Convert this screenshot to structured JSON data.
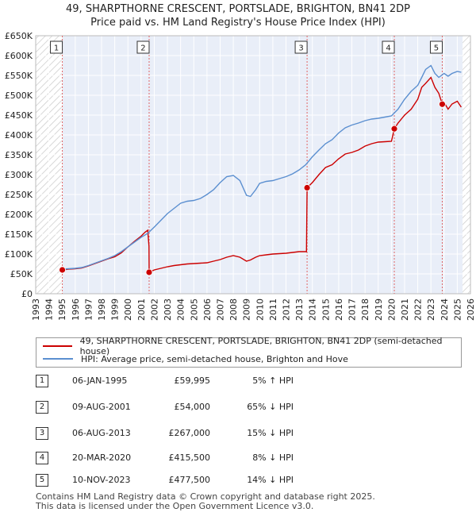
{
  "title": {
    "line1": "49, SHARPTHORNE CRESCENT, PORTSLADE, BRIGHTON, BN41 2DP",
    "line2": "Price paid vs. HM Land Registry's House Price Index (HPI)"
  },
  "colors": {
    "property": "#cc0000",
    "hpi": "#5b8fd0",
    "marker_line": "#e06666",
    "hatch": "#cccccc",
    "band": "#e9eef8"
  },
  "chart_data": {
    "type": "line",
    "title": "49, SHARPTHORNE CRESCENT, PORTSLADE, BRIGHTON, BN41 2DP — Price paid vs. HM Land Registry's House Price Index (HPI)",
    "xlim": [
      1993,
      2026
    ],
    "ylim": [
      0,
      650000
    ],
    "x_ticks": [
      "1993",
      "1994",
      "1995",
      "1996",
      "1997",
      "1998",
      "1999",
      "2000",
      "2001",
      "2002",
      "2003",
      "2004",
      "2005",
      "2006",
      "2007",
      "2008",
      "2009",
      "2010",
      "2011",
      "2012",
      "2013",
      "2014",
      "2015",
      "2016",
      "2017",
      "2018",
      "2019",
      "2020",
      "2021",
      "2022",
      "2023",
      "2024",
      "2025",
      "2026"
    ],
    "y_ticks": [
      {
        "value": 0,
        "label": "£0"
      },
      {
        "value": 50000,
        "label": "£50K"
      },
      {
        "value": 100000,
        "label": "£100K"
      },
      {
        "value": 150000,
        "label": "£150K"
      },
      {
        "value": 200000,
        "label": "£200K"
      },
      {
        "value": 250000,
        "label": "£250K"
      },
      {
        "value": 300000,
        "label": "£300K"
      },
      {
        "value": 350000,
        "label": "£350K"
      },
      {
        "value": 400000,
        "label": "£400K"
      },
      {
        "value": 450000,
        "label": "£450K"
      },
      {
        "value": 500000,
        "label": "£500K"
      },
      {
        "value": 550000,
        "label": "£550K"
      },
      {
        "value": 600000,
        "label": "£600K"
      },
      {
        "value": 650000,
        "label": "£650K"
      }
    ],
    "hatched_ranges": [
      [
        1993,
        1995.0
      ],
      [
        2025.4,
        2026
      ]
    ],
    "highlight_band": [
      1995.0,
      2025.4
    ],
    "series": [
      {
        "name": "49, SHARPTHORNE CRESCENT, PORTSLADE, BRIGHTON, BN41 2DP (semi-detached house)",
        "color": "property",
        "x": [
          1995.02,
          1995.5,
          1996,
          1996.5,
          1997,
          1997.5,
          1998,
          1998.5,
          1999,
          1999.5,
          2000,
          2000.5,
          2001,
          2001.3,
          2001.5,
          2001.6,
          2001.61,
          2002,
          2002.5,
          2003,
          2003.5,
          2004,
          2004.5,
          2005,
          2005.5,
          2006,
          2006.5,
          2007,
          2007.5,
          2008,
          2008.5,
          2009,
          2009.3,
          2009.7,
          2010,
          2010.5,
          2011,
          2011.5,
          2012,
          2012.5,
          2013,
          2013.55,
          2013.6,
          2014,
          2014.5,
          2015,
          2015.5,
          2016,
          2016.5,
          2017,
          2017.5,
          2018,
          2018.5,
          2019,
          2019.5,
          2020,
          2020.22,
          2020.5,
          2021,
          2021.5,
          2022,
          2022.3,
          2022.6,
          2023,
          2023.3,
          2023.6,
          2023.86,
          2024,
          2024.3,
          2024.6,
          2025,
          2025.3
        ],
        "y": [
          59995,
          62000,
          63000,
          65000,
          70000,
          76000,
          82000,
          88000,
          93000,
          103000,
          118000,
          132000,
          145000,
          155000,
          160000,
          120000,
          54000,
          60000,
          64000,
          68000,
          71000,
          73000,
          75000,
          76000,
          77000,
          78000,
          82000,
          86000,
          92000,
          96000,
          92000,
          82000,
          85000,
          92000,
          96000,
          98000,
          100000,
          101000,
          102000,
          104000,
          106000,
          106000,
          267000,
          280000,
          300000,
          318000,
          325000,
          340000,
          352000,
          356000,
          362000,
          372000,
          378000,
          382000,
          383000,
          384000,
          415500,
          430000,
          450000,
          465000,
          490000,
          520000,
          530000,
          545000,
          520000,
          505000,
          477500,
          482000,
          465000,
          478000,
          485000,
          470000
        ]
      },
      {
        "name": "HPI: Average price, semi-detached house, Brighton and Hove",
        "color": "hpi",
        "x": [
          1995,
          1995.5,
          1996,
          1996.5,
          1997,
          1997.5,
          1998,
          1998.5,
          1999,
          1999.5,
          2000,
          2000.5,
          2001,
          2001.5,
          2002,
          2002.5,
          2003,
          2003.5,
          2004,
          2004.5,
          2005,
          2005.5,
          2006,
          2006.5,
          2007,
          2007.5,
          2008,
          2008.5,
          2009,
          2009.3,
          2009.7,
          2010,
          2010.5,
          2011,
          2011.5,
          2012,
          2012.5,
          2013,
          2013.5,
          2014,
          2014.5,
          2015,
          2015.5,
          2016,
          2016.5,
          2017,
          2017.5,
          2018,
          2018.5,
          2019,
          2019.5,
          2020,
          2020.5,
          2021,
          2021.5,
          2022,
          2022.3,
          2022.6,
          2023,
          2023.3,
          2023.6,
          2024,
          2024.3,
          2024.6,
          2025,
          2025.3
        ],
        "y": [
          62000,
          63000,
          64000,
          66000,
          71000,
          77000,
          83000,
          89000,
          96000,
          106000,
          118000,
          130000,
          142000,
          152000,
          168000,
          185000,
          202000,
          215000,
          228000,
          233000,
          235000,
          240000,
          250000,
          262000,
          280000,
          295000,
          298000,
          285000,
          248000,
          245000,
          262000,
          278000,
          283000,
          285000,
          290000,
          295000,
          302000,
          312000,
          325000,
          345000,
          362000,
          378000,
          388000,
          405000,
          418000,
          425000,
          430000,
          436000,
          440000,
          442000,
          445000,
          448000,
          465000,
          490000,
          510000,
          525000,
          545000,
          565000,
          575000,
          555000,
          545000,
          555000,
          548000,
          555000,
          560000,
          558000
        ]
      }
    ],
    "transactions": [
      {
        "num": "1",
        "year": 1995.02,
        "price": 59995,
        "date": "06-JAN-1995",
        "price_label": "£59,995",
        "hpi_label": "5% ↑ HPI"
      },
      {
        "num": "2",
        "year": 2001.61,
        "price": 54000,
        "date": "09-AUG-2001",
        "price_label": "£54,000",
        "hpi_label": "65% ↓ HPI"
      },
      {
        "num": "3",
        "year": 2013.6,
        "price": 267000,
        "date": "06-AUG-2013",
        "price_label": "£267,000",
        "hpi_label": "15% ↓ HPI"
      },
      {
        "num": "4",
        "year": 2020.22,
        "price": 415500,
        "date": "20-MAR-2020",
        "price_label": "£415,500",
        "hpi_label": "8% ↓ HPI"
      },
      {
        "num": "5",
        "year": 2023.86,
        "price": 477500,
        "date": "10-NOV-2023",
        "price_label": "£477,500",
        "hpi_label": "14% ↓ HPI"
      }
    ]
  },
  "legend": {
    "property_label": "49, SHARPTHORNE CRESCENT, PORTSLADE, BRIGHTON, BN41 2DP (semi-detached house)",
    "hpi_label": "HPI: Average price, semi-detached house, Brighton and Hove"
  },
  "footer": {
    "line1": "Contains HM Land Registry data © Crown copyright and database right 2025.",
    "line2": "This data is licensed under the Open Government Licence v3.0."
  }
}
